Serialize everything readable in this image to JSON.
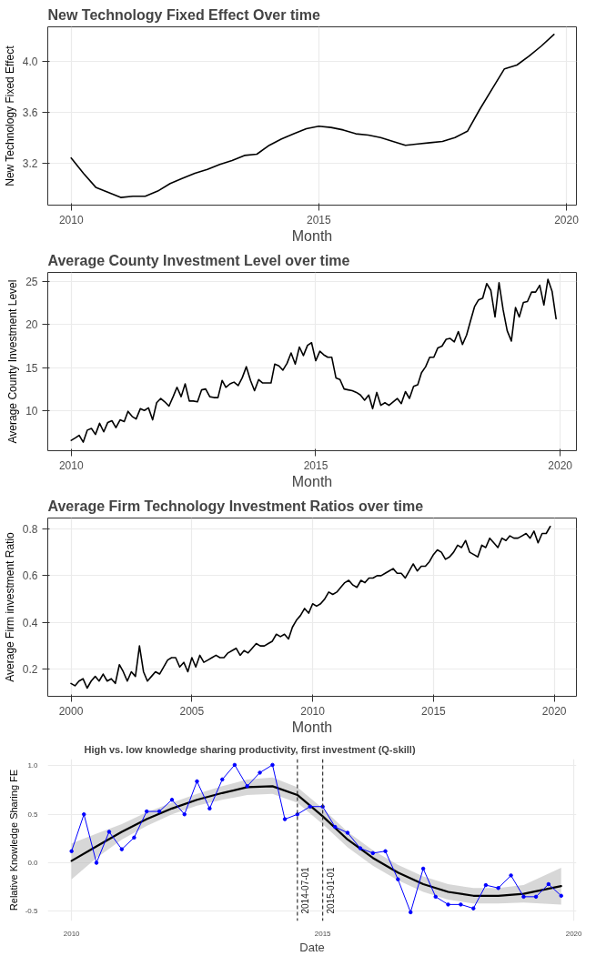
{
  "chart_data": [
    {
      "type": "line",
      "title": "New Technology Fixed Effect Over time",
      "xlabel": "Month",
      "ylabel": "New Technology Fixed Effect",
      "grid": true,
      "xlim": [
        "2009-07-12",
        "2020-03-15"
      ],
      "ylim": [
        2.87,
        4.27
      ],
      "xticks": [
        "2010",
        "2015",
        "2020"
      ],
      "yticks": [
        {
          "value": 3.2,
          "label": "3.2"
        },
        {
          "value": 3.6,
          "label": "3.6"
        },
        {
          "value": 4.0,
          "label": "4.0"
        }
      ],
      "series": [
        {
          "color": "#000000",
          "x": [
            "2010-01",
            "2010-04",
            "2010-07",
            "2010-10",
            "2011-01",
            "2011-04",
            "2011-07",
            "2011-10",
            "2012-01",
            "2012-04",
            "2012-07",
            "2012-10",
            "2013-01",
            "2013-04",
            "2013-07",
            "2013-10",
            "2014-01",
            "2014-04",
            "2014-07",
            "2014-10",
            "2015-01",
            "2015-04",
            "2015-07",
            "2015-10",
            "2016-01",
            "2016-04",
            "2016-07",
            "2016-10",
            "2017-01",
            "2017-04",
            "2017-07",
            "2017-10",
            "2018-01",
            "2018-04",
            "2018-07",
            "2018-10",
            "2019-01",
            "2019-04",
            "2019-07",
            "2019-10"
          ],
          "values": [
            3.24,
            3.12,
            3.01,
            2.97,
            2.93,
            2.94,
            2.94,
            2.98,
            3.04,
            3.08,
            3.12,
            3.15,
            3.19,
            3.22,
            3.26,
            3.27,
            3.34,
            3.39,
            3.43,
            3.47,
            3.49,
            3.48,
            3.46,
            3.43,
            3.42,
            3.4,
            3.37,
            3.34,
            3.35,
            3.36,
            3.37,
            3.4,
            3.45,
            3.62,
            3.78,
            3.94,
            3.97,
            4.04,
            4.12,
            4.21
          ]
        }
      ]
    },
    {
      "type": "line",
      "title": "Average County Investment Level over time",
      "xlabel": "Month",
      "ylabel": "Average County Investment Level",
      "grid": true,
      "xlim": [
        "2009-07-10",
        "2020-05-01"
      ],
      "ylim": [
        5.3,
        26.1
      ],
      "xticks": [
        "2010",
        "2015",
        "2020"
      ],
      "yticks": [
        10,
        15,
        20,
        25
      ],
      "series": [
        {
          "color": "#000000",
          "x": [
            "2010-01",
            "2010-02",
            "2010-03",
            "2010-04",
            "2010-05",
            "2010-06",
            "2010-07",
            "2010-08",
            "2010-09",
            "2010-10",
            "2010-11",
            "2010-12",
            "2011-01",
            "2011-02",
            "2011-03",
            "2011-04",
            "2011-05",
            "2011-06",
            "2011-07",
            "2011-08",
            "2011-09",
            "2011-10",
            "2011-11",
            "2011-12",
            "2012-01",
            "2012-02",
            "2012-03",
            "2012-04",
            "2012-05",
            "2012-06",
            "2012-07",
            "2012-08",
            "2012-09",
            "2012-10",
            "2012-11",
            "2012-12",
            "2013-01",
            "2013-02",
            "2013-03",
            "2013-04",
            "2013-05",
            "2013-06",
            "2013-07",
            "2013-08",
            "2013-09",
            "2013-10",
            "2013-11",
            "2013-12",
            "2014-01",
            "2014-02",
            "2014-03",
            "2014-04",
            "2014-05",
            "2014-06",
            "2014-07",
            "2014-08",
            "2014-09",
            "2014-10",
            "2014-11",
            "2014-12",
            "2015-01",
            "2015-02",
            "2015-03",
            "2015-04",
            "2015-05",
            "2015-06",
            "2015-07",
            "2015-08",
            "2015-09",
            "2015-10",
            "2015-11",
            "2015-12",
            "2016-01",
            "2016-02",
            "2016-03",
            "2016-04",
            "2016-05",
            "2016-06",
            "2016-07",
            "2016-08",
            "2016-09",
            "2016-10",
            "2016-11",
            "2016-12",
            "2017-01",
            "2017-02",
            "2017-03",
            "2017-04",
            "2017-05",
            "2017-06",
            "2017-07",
            "2017-08",
            "2017-09",
            "2017-10",
            "2017-11",
            "2017-12",
            "2018-01",
            "2018-02",
            "2018-03",
            "2018-04",
            "2018-05",
            "2018-06",
            "2018-07",
            "2018-08",
            "2018-09",
            "2018-10",
            "2018-11",
            "2018-12",
            "2019-01",
            "2019-02",
            "2019-03",
            "2019-04",
            "2019-05",
            "2019-06",
            "2019-07",
            "2019-08",
            "2019-09",
            "2019-10",
            "2019-11",
            "2019-12"
          ],
          "values": [
            6.5,
            6.8,
            7.1,
            6.3,
            7.7,
            7.9,
            7.2,
            8.5,
            7.5,
            8.6,
            8.8,
            8.0,
            8.9,
            8.7,
            9.9,
            9.3,
            9.0,
            10.2,
            10.0,
            10.3,
            8.9,
            10.9,
            11.4,
            11.0,
            10.5,
            11.6,
            12.7,
            11.6,
            13.1,
            11.1,
            11.1,
            11.0,
            12.4,
            12.5,
            11.6,
            11.5,
            11.5,
            13.5,
            12.7,
            13.1,
            13.3,
            12.9,
            13.8,
            15.1,
            13.5,
            12.3,
            13.6,
            13.2,
            13.2,
            13.2,
            15.4,
            15.2,
            14.7,
            15.5,
            16.7,
            15.4,
            17.4,
            16.4,
            17.6,
            17.9,
            15.8,
            16.9,
            16.5,
            16.2,
            16.2,
            13.8,
            13.6,
            12.5,
            12.4,
            12.3,
            12.1,
            11.8,
            11.2,
            11.8,
            10.2,
            12.1,
            10.6,
            10.9,
            10.6,
            11.0,
            11.4,
            10.8,
            12.2,
            11.4,
            12.8,
            13.0,
            14.4,
            15.1,
            16.2,
            16.2,
            17.3,
            17.5,
            18.3,
            18.4,
            18.0,
            19.2,
            17.7,
            18.8,
            20.4,
            22.1,
            22.9,
            23.1,
            24.8,
            24.0,
            20.9,
            24.9,
            21.7,
            19.3,
            18.1,
            22.0,
            20.9,
            22.6,
            22.7,
            23.8,
            23.8,
            24.6,
            22.3,
            25.3,
            23.9,
            20.7
          ]
        }
      ]
    },
    {
      "type": "line",
      "title": "Average Firm Technology Investment Ratios over time",
      "xlabel": "Month",
      "ylabel": "Average Firm investment Ratio",
      "grid": true,
      "xlim": [
        "1999-01-15",
        "2020-12-01"
      ],
      "ylim": [
        0.085,
        0.846
      ],
      "xticks": [
        "2000",
        "2005",
        "2010",
        "2015",
        "2020"
      ],
      "yticks": [
        0.2,
        0.4,
        0.6,
        0.8
      ],
      "series": [
        {
          "color": "#000000",
          "x": [
            "2000-01",
            "2000-03",
            "2000-05",
            "2000-07",
            "2000-09",
            "2000-11",
            "2001-01",
            "2001-03",
            "2001-05",
            "2001-07",
            "2001-09",
            "2001-11",
            "2002-01",
            "2002-03",
            "2002-05",
            "2002-07",
            "2002-09",
            "2002-11",
            "2003-01",
            "2003-03",
            "2003-05",
            "2003-07",
            "2003-09",
            "2003-11",
            "2004-01",
            "2004-03",
            "2004-05",
            "2004-07",
            "2004-09",
            "2004-11",
            "2005-01",
            "2005-03",
            "2005-05",
            "2005-07",
            "2005-09",
            "2005-11",
            "2006-01",
            "2006-03",
            "2006-05",
            "2006-07",
            "2006-09",
            "2006-11",
            "2007-01",
            "2007-03",
            "2007-05",
            "2007-07",
            "2007-09",
            "2007-11",
            "2008-01",
            "2008-03",
            "2008-05",
            "2008-07",
            "2008-09",
            "2008-11",
            "2009-01",
            "2009-03",
            "2009-05",
            "2009-07",
            "2009-09",
            "2009-11",
            "2010-01",
            "2010-03",
            "2010-05",
            "2010-07",
            "2010-09",
            "2010-11",
            "2011-01",
            "2011-03",
            "2011-05",
            "2011-07",
            "2011-09",
            "2011-11",
            "2012-01",
            "2012-03",
            "2012-05",
            "2012-07",
            "2012-09",
            "2012-11",
            "2013-01",
            "2013-03",
            "2013-05",
            "2013-07",
            "2013-09",
            "2013-11",
            "2014-01",
            "2014-03",
            "2014-05",
            "2014-07",
            "2014-09",
            "2014-11",
            "2015-01",
            "2015-03",
            "2015-05",
            "2015-07",
            "2015-09",
            "2015-11",
            "2016-01",
            "2016-03",
            "2016-05",
            "2016-07",
            "2016-09",
            "2016-11",
            "2017-01",
            "2017-03",
            "2017-05",
            "2017-07",
            "2017-09",
            "2017-11",
            "2018-01",
            "2018-03",
            "2018-05",
            "2018-07",
            "2018-09",
            "2018-11",
            "2019-01",
            "2019-03",
            "2019-05",
            "2019-07",
            "2019-09",
            "2019-11"
          ],
          "values": [
            0.14,
            0.13,
            0.15,
            0.16,
            0.12,
            0.15,
            0.17,
            0.15,
            0.18,
            0.15,
            0.16,
            0.14,
            0.22,
            0.19,
            0.15,
            0.19,
            0.17,
            0.3,
            0.19,
            0.15,
            0.17,
            0.19,
            0.18,
            0.21,
            0.24,
            0.25,
            0.25,
            0.21,
            0.23,
            0.19,
            0.25,
            0.21,
            0.26,
            0.23,
            0.24,
            0.25,
            0.26,
            0.25,
            0.25,
            0.27,
            0.28,
            0.29,
            0.26,
            0.28,
            0.27,
            0.29,
            0.31,
            0.3,
            0.3,
            0.31,
            0.32,
            0.35,
            0.34,
            0.35,
            0.33,
            0.38,
            0.41,
            0.43,
            0.46,
            0.44,
            0.48,
            0.47,
            0.48,
            0.5,
            0.53,
            0.52,
            0.53,
            0.55,
            0.57,
            0.58,
            0.56,
            0.55,
            0.58,
            0.57,
            0.59,
            0.59,
            0.6,
            0.6,
            0.61,
            0.62,
            0.63,
            0.61,
            0.61,
            0.59,
            0.62,
            0.65,
            0.62,
            0.64,
            0.64,
            0.66,
            0.69,
            0.71,
            0.7,
            0.67,
            0.68,
            0.7,
            0.73,
            0.72,
            0.75,
            0.7,
            0.69,
            0.68,
            0.73,
            0.72,
            0.76,
            0.74,
            0.72,
            0.76,
            0.75,
            0.77,
            0.76,
            0.76,
            0.77,
            0.78,
            0.76,
            0.79,
            0.74,
            0.78,
            0.78,
            0.81
          ]
        }
      ]
    },
    {
      "type": "line",
      "title": "High vs. low knowledge sharing productivity, first investment (Q-skill)",
      "xlabel": "Date",
      "ylabel": "Relative Knowledge Sharing FE",
      "grid": true,
      "xlim": [
        "2009-07-12",
        "2020-01-20"
      ],
      "ylim": [
        -0.6,
        1.07
      ],
      "xticks": [
        "2010",
        "2015",
        "2020"
      ],
      "yticks": [
        {
          "value": -0.5,
          "label": "-0.5"
        },
        {
          "value": 0,
          "label": "0.0"
        },
        {
          "value": 0.5,
          "label": "0.5"
        },
        {
          "value": 1,
          "label": "1.0"
        }
      ],
      "ref_lines": [
        {
          "axis": "x",
          "value": "2014-07-01",
          "label": "2014-07-01",
          "line_style": "dashed"
        },
        {
          "axis": "x",
          "value": "2015-01-01",
          "label": "2015-01-01",
          "line_style": "dashed"
        }
      ],
      "series": [
        {
          "color": "#000000",
          "x": [
            "2010-01",
            "2010-07",
            "2011-01",
            "2011-07",
            "2012-01",
            "2012-07",
            "2013-01",
            "2013-07",
            "2014-01",
            "2014-07",
            "2015-01",
            "2015-07",
            "2016-01",
            "2016-07",
            "2017-01",
            "2017-07",
            "2018-01",
            "2018-07",
            "2019-01",
            "2019-10"
          ],
          "values": [
            0.02,
            0.17,
            0.32,
            0.45,
            0.56,
            0.65,
            0.72,
            0.78,
            0.79,
            0.7,
            0.48,
            0.24,
            0.05,
            -0.1,
            -0.22,
            -0.3,
            -0.34,
            -0.34,
            -0.32,
            -0.24
          ],
          "lower": [
            -0.17,
            0.05,
            0.24,
            0.38,
            0.5,
            0.59,
            0.65,
            0.7,
            0.71,
            0.62,
            0.4,
            0.16,
            -0.03,
            -0.18,
            -0.3,
            -0.38,
            -0.42,
            -0.42,
            -0.41,
            -0.43
          ],
          "upper": [
            0.2,
            0.3,
            0.4,
            0.52,
            0.62,
            0.71,
            0.79,
            0.86,
            0.88,
            0.78,
            0.56,
            0.32,
            0.13,
            -0.02,
            -0.14,
            -0.22,
            -0.26,
            -0.26,
            -0.23,
            -0.05
          ]
        },
        {
          "color": "#0000ff",
          "marker": "circle",
          "x": [
            "2010-01",
            "2010-04",
            "2010-07",
            "2010-10",
            "2011-01",
            "2011-04",
            "2011-07",
            "2011-10",
            "2012-01",
            "2012-04",
            "2012-07",
            "2012-10",
            "2013-01",
            "2013-04",
            "2013-07",
            "2013-10",
            "2014-01",
            "2014-04",
            "2014-07",
            "2014-10",
            "2015-01",
            "2015-04",
            "2015-07",
            "2015-10",
            "2016-01",
            "2016-04",
            "2016-07",
            "2016-10",
            "2017-01",
            "2017-04",
            "2017-07",
            "2017-10",
            "2018-01",
            "2018-04",
            "2018-07",
            "2018-10",
            "2019-01",
            "2019-04",
            "2019-07",
            "2019-10"
          ],
          "values": [
            0.12,
            0.5,
            0.0,
            0.32,
            0.14,
            0.26,
            0.53,
            0.53,
            0.65,
            0.5,
            0.84,
            0.56,
            0.86,
            1.01,
            0.79,
            0.93,
            1.01,
            0.45,
            0.5,
            0.58,
            0.58,
            0.37,
            0.31,
            0.15,
            0.1,
            0.12,
            -0.17,
            -0.51,
            -0.06,
            -0.35,
            -0.43,
            -0.43,
            -0.47,
            -0.23,
            -0.26,
            -0.13,
            -0.35,
            -0.35,
            -0.22,
            -0.34
          ]
        }
      ]
    }
  ]
}
